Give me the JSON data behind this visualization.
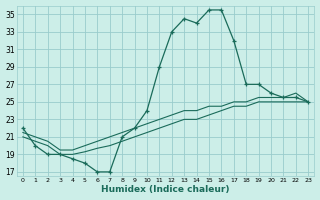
{
  "xlabel": "Humidex (Indice chaleur)",
  "bg_color": "#cceee8",
  "grid_color": "#99cccc",
  "line_color": "#1a6b5a",
  "xlim": [
    -0.5,
    23.5
  ],
  "ylim": [
    16.5,
    36
  ],
  "xticks": [
    0,
    1,
    2,
    3,
    4,
    5,
    6,
    7,
    8,
    9,
    10,
    11,
    12,
    13,
    14,
    15,
    16,
    17,
    18,
    19,
    20,
    21,
    22,
    23
  ],
  "yticks": [
    17,
    19,
    21,
    23,
    25,
    27,
    29,
    31,
    33,
    35
  ],
  "main_x": [
    0,
    1,
    2,
    3,
    4,
    5,
    6,
    7,
    8,
    9,
    10,
    11,
    12,
    13,
    14,
    15,
    16,
    17,
    18,
    19,
    20,
    21,
    22,
    23
  ],
  "main_y": [
    22,
    20,
    19,
    19,
    18.5,
    18,
    17,
    17,
    21,
    22,
    24,
    29,
    33,
    34.5,
    34,
    35.5,
    35.5,
    32,
    27,
    27,
    26,
    25.5,
    25.5,
    25
  ],
  "ref1_x": [
    0,
    1,
    2,
    3,
    4,
    5,
    6,
    7,
    8,
    9,
    10,
    11,
    12,
    13,
    14,
    15,
    16,
    17,
    18,
    19,
    20,
    21,
    22,
    23
  ],
  "ref1_y": [
    21.5,
    21,
    20.5,
    19.5,
    19.5,
    20,
    20.5,
    21,
    21.5,
    22,
    22.5,
    23,
    23.5,
    24,
    24,
    24.5,
    24.5,
    25,
    25,
    25.5,
    25.5,
    25.5,
    26,
    25
  ],
  "ref2_x": [
    0,
    1,
    2,
    3,
    4,
    5,
    6,
    7,
    8,
    9,
    10,
    11,
    12,
    13,
    14,
    15,
    16,
    17,
    18,
    19,
    20,
    21,
    22,
    23
  ],
  "ref2_y": [
    21,
    20.5,
    20,
    19,
    19,
    19.3,
    19.7,
    20,
    20.5,
    21,
    21.5,
    22,
    22.5,
    23,
    23,
    23.5,
    24,
    24.5,
    24.5,
    25,
    25,
    25,
    25,
    25
  ]
}
